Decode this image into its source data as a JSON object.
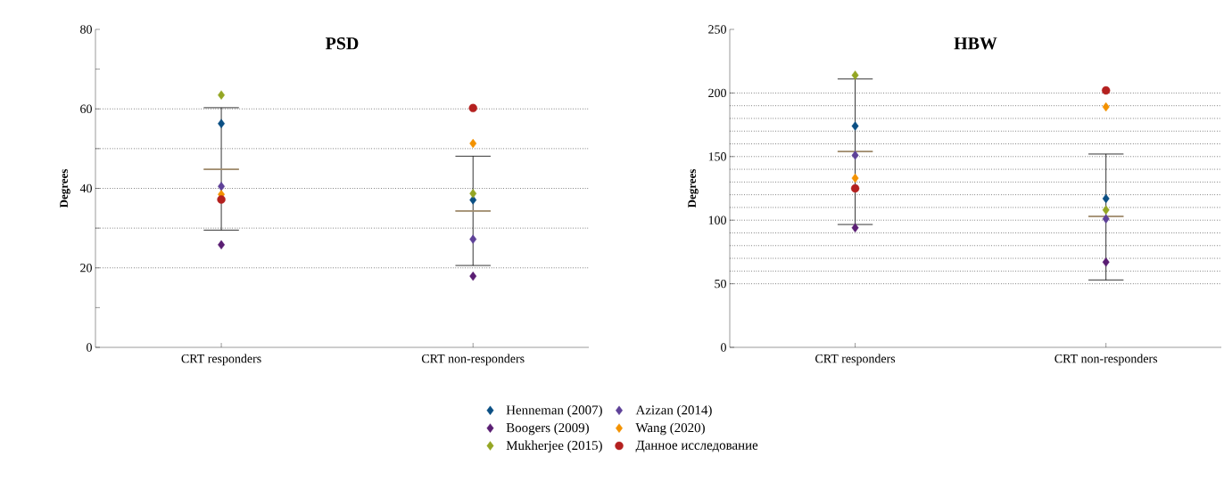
{
  "chart_data": [
    {
      "type": "scatter",
      "title": "PSD",
      "ylabel": "Degrees",
      "categories": [
        "CRT responders",
        "CRT non-responders"
      ],
      "ylim": [
        0,
        80
      ],
      "yticks": [
        0,
        {
          "value": 10,
          "label": null
        },
        20,
        {
          "value": 30,
          "label": null
        },
        40,
        {
          "value": 50,
          "label": null
        },
        60,
        {
          "value": 70,
          "label": null
        },
        80
      ],
      "legend": "bottom",
      "grid": false,
      "ref_lines": [
        {
          "axis": "y",
          "value": 20,
          "line_style": "dotted"
        },
        {
          "axis": "y",
          "value": 30,
          "line_style": "dotted"
        },
        {
          "axis": "y",
          "value": 40,
          "line_style": "dotted"
        },
        {
          "axis": "y",
          "value": 50,
          "line_style": "dotted"
        },
        {
          "axis": "y",
          "value": 60,
          "line_style": "dotted"
        }
      ],
      "series": [
        {
          "name": "Henneman (2007)",
          "color": "#0b4f84",
          "marker": "diamond",
          "values": [
            56.3,
            37.1
          ]
        },
        {
          "name": "Boogers (2009)",
          "color": "#5a1e73",
          "marker": "diamond",
          "values": [
            25.8,
            17.9
          ]
        },
        {
          "name": "Mukherjee (2015)",
          "color": "#94a624",
          "marker": "diamond",
          "values": [
            63.5,
            38.7
          ]
        },
        {
          "name": "Azizan (2014)",
          "color": "#5e4198",
          "marker": "diamond",
          "values": [
            40.5,
            27.2
          ]
        },
        {
          "name": "Wang (2020)",
          "color": "#f39200",
          "marker": "diamond",
          "values": [
            38.5,
            51.3
          ]
        },
        {
          "name": "Данное исследование",
          "color": "#b4201f",
          "marker": "circle",
          "values": [
            37.2,
            60.2
          ]
        },
        {
          "type": "box",
          "color": "#a08c6e",
          "boxes": [
            {
              "low": 29.5,
              "q1": 44.8,
              "median": 44.8,
              "q3": 44.8,
              "high": 60.3
            },
            {
              "low": 20.6,
              "q1": 34.3,
              "median": 34.3,
              "q3": 34.3,
              "high": 48.1
            }
          ]
        }
      ]
    },
    {
      "type": "scatter",
      "title": "HBW",
      "ylabel": "Degrees",
      "categories": [
        "CRT responders",
        "CRT non-responders"
      ],
      "ylim": [
        0,
        250
      ],
      "yticks": [
        0,
        50,
        100,
        150,
        200,
        250
      ],
      "grid": false,
      "ref_lines": [
        {
          "axis": "y",
          "value": 50,
          "line_style": "dotted"
        },
        {
          "axis": "y",
          "value": 60,
          "line_style": "dotted"
        },
        {
          "axis": "y",
          "value": 70,
          "line_style": "dotted"
        },
        {
          "axis": "y",
          "value": 80,
          "line_style": "dotted"
        },
        {
          "axis": "y",
          "value": 90,
          "line_style": "dotted"
        },
        {
          "axis": "y",
          "value": 100,
          "line_style": "dotted"
        },
        {
          "axis": "y",
          "value": 110,
          "line_style": "dotted"
        },
        {
          "axis": "y",
          "value": 120,
          "line_style": "dotted"
        },
        {
          "axis": "y",
          "value": 130,
          "line_style": "dotted"
        },
        {
          "axis": "y",
          "value": 140,
          "line_style": "dotted"
        },
        {
          "axis": "y",
          "value": 150,
          "line_style": "dotted"
        },
        {
          "axis": "y",
          "value": 160,
          "line_style": "dotted"
        },
        {
          "axis": "y",
          "value": 170,
          "line_style": "dotted"
        },
        {
          "axis": "y",
          "value": 180,
          "line_style": "dotted"
        },
        {
          "axis": "y",
          "value": 190,
          "line_style": "dotted"
        },
        {
          "axis": "y",
          "value": 200,
          "line_style": "dotted"
        }
      ],
      "series": [
        {
          "color": "#0b4f84",
          "marker": "diamond",
          "values": [
            174,
            117
          ]
        },
        {
          "color": "#5a1e73",
          "marker": "diamond",
          "values": [
            94,
            67
          ]
        },
        {
          "color": "#94a624",
          "marker": "diamond",
          "values": [
            214,
            108
          ]
        },
        {
          "color": "#5e4198",
          "marker": "diamond",
          "values": [
            151,
            101
          ]
        },
        {
          "color": "#f39200",
          "marker": "diamond",
          "values": [
            133,
            189
          ]
        },
        {
          "color": "#b4201f",
          "marker": "circle",
          "values": [
            125,
            202
          ]
        },
        {
          "type": "box",
          "color": "#a08c6e",
          "boxes": [
            {
              "low": 96.6,
              "q1": 154,
              "median": 154,
              "q3": 154,
              "high": 211
            },
            {
              "low": 53,
              "q1": 103,
              "median": 103,
              "q3": 103,
              "high": 152
            }
          ]
        }
      ]
    }
  ]
}
